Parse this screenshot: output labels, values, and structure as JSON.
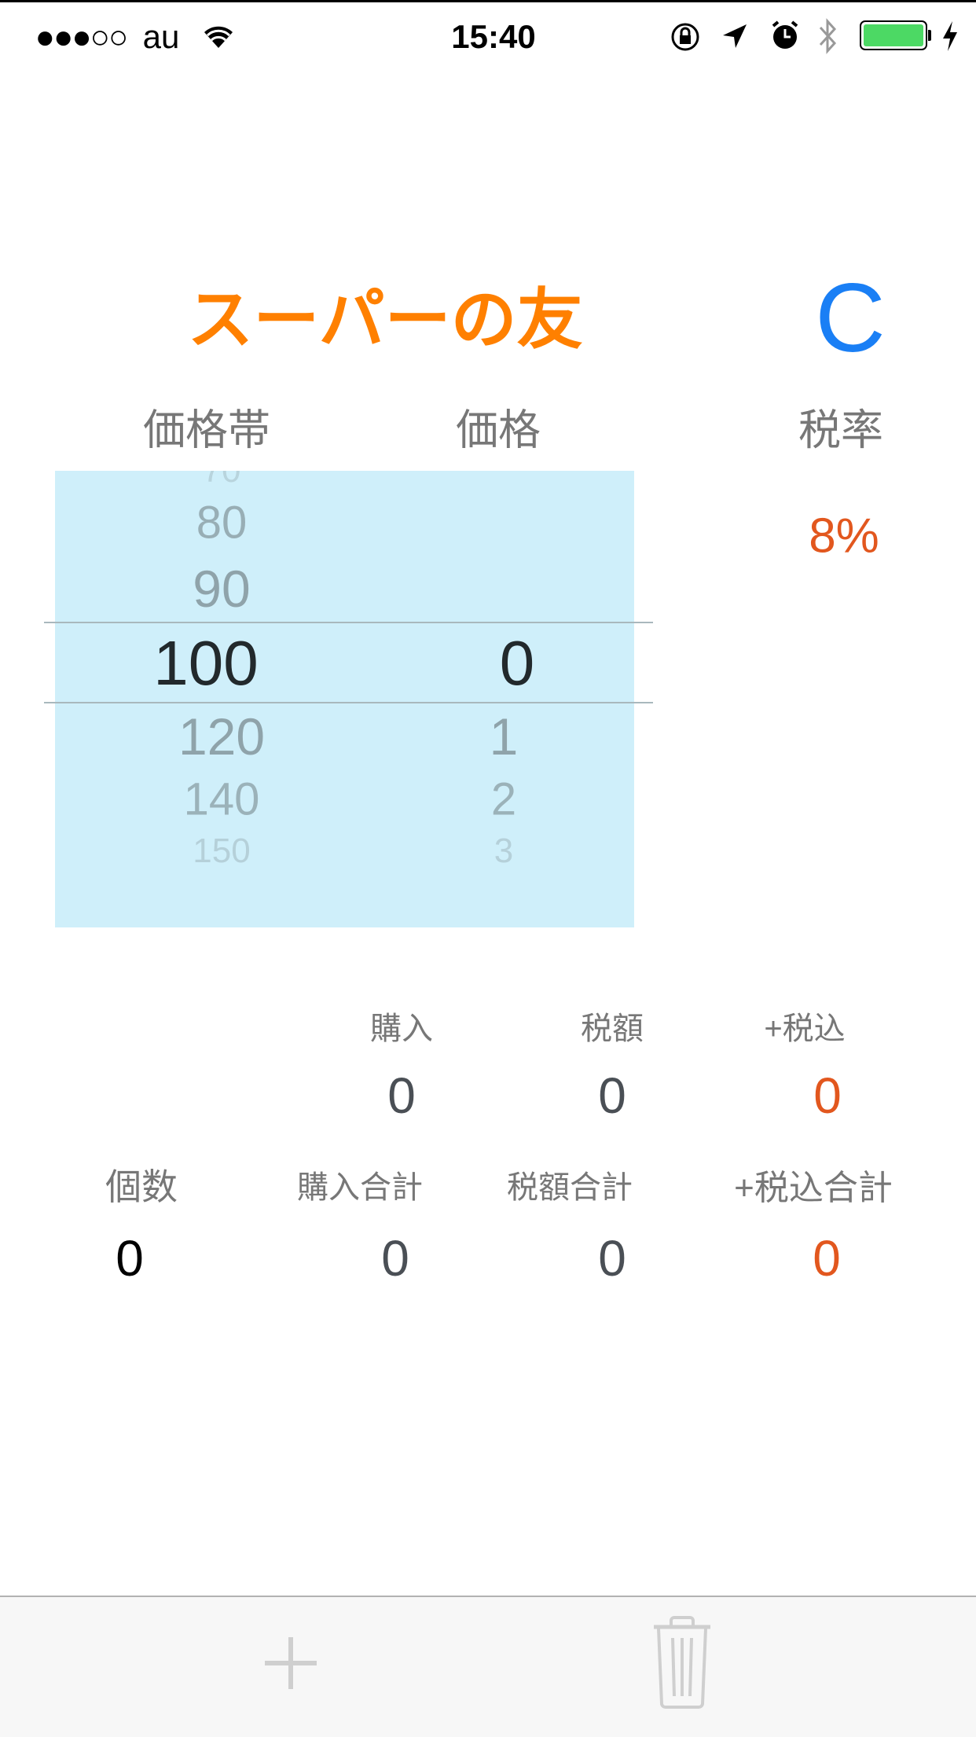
{
  "status_bar": {
    "signal": "●●●○○",
    "carrier": "au",
    "time": "15:40",
    "battery_color": "#4cd964",
    "icons": [
      "wifi-icon",
      "orientation-lock-icon",
      "location-icon",
      "alarm-icon",
      "bluetooth-icon",
      "battery-icon",
      "charging-icon"
    ]
  },
  "header": {
    "title": "スーパーの友",
    "title_color": "#ff8000",
    "clear_button": "C",
    "clear_color": "#1a7ff5"
  },
  "columns": {
    "price_band": "価格帯",
    "price": "価格",
    "tax_rate": "税率"
  },
  "tax_rate_value": "8%",
  "picker": {
    "price_band": {
      "above": [
        "70",
        "80",
        "90"
      ],
      "selected": "100",
      "below": [
        "120",
        "140",
        "150"
      ]
    },
    "price": {
      "selected": "0",
      "below": [
        "1",
        "2",
        "3"
      ]
    }
  },
  "summary": {
    "row1": {
      "labels": [
        "購入",
        "税額",
        "+税込"
      ],
      "values": [
        "0",
        "0",
        "0"
      ]
    },
    "row2": {
      "labels": [
        "個数",
        "購入合計",
        "税額合計",
        "+税込合計"
      ],
      "values": [
        "0",
        "0",
        "0",
        "0"
      ]
    }
  },
  "toolbar": {
    "add": "plus-icon",
    "delete": "trash-icon"
  },
  "accent_orange": "#e2571e"
}
